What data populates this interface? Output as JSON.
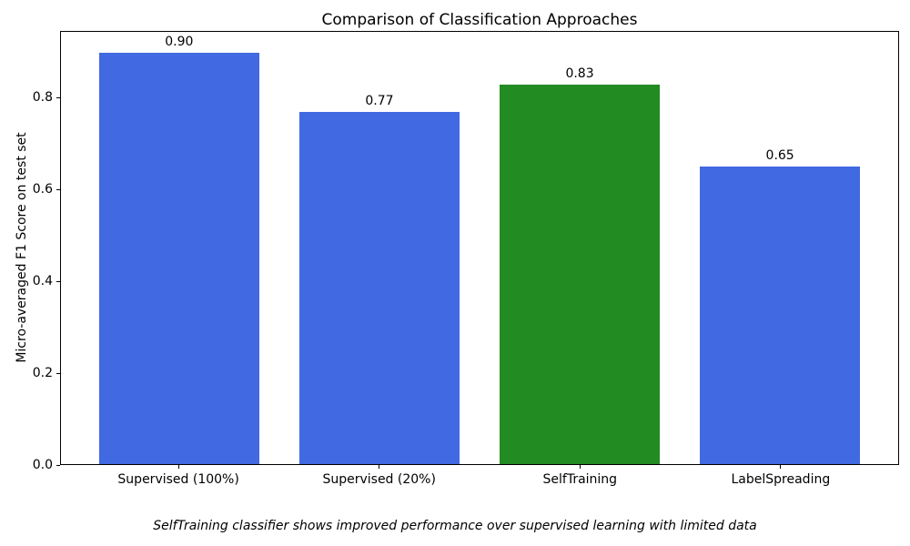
{
  "figure": {
    "title": "Comparison of Classification Approaches",
    "caption": "SelfTraining classifier shows improved performance over supervised learning with limited data"
  },
  "chart_data": {
    "type": "bar",
    "title": "Comparison of Classification Approaches",
    "categories": [
      "Supervised (100%)",
      "Supervised (20%)",
      "SelfTraining",
      "LabelSpreading"
    ],
    "values": [
      0.9,
      0.77,
      0.83,
      0.65
    ],
    "bar_labels": [
      "0.90",
      "0.77",
      "0.83",
      "0.65"
    ],
    "bar_colors": [
      "#4169e1",
      "#4169e1",
      "#228b22",
      "#4169e1"
    ],
    "xlabel": "",
    "ylabel": "Micro-averaged F1 Score on test set",
    "ylim": [
      0,
      0.945
    ],
    "xlim": [
      -0.59,
      3.59
    ],
    "bar_width": 0.8,
    "yticks": [
      0.0,
      0.2,
      0.4,
      0.6,
      0.8
    ],
    "ytick_labels": [
      "0.0",
      "0.2",
      "0.4",
      "0.6",
      "0.8"
    ],
    "grid": false,
    "legend": null,
    "annotation": "SelfTraining classifier shows improved performance over supervised learning with limited data"
  },
  "colors": {
    "bar_blue": "#4169e1",
    "bar_green": "#228b22",
    "spine": "#000000",
    "background": "#ffffff",
    "text": "#000000"
  }
}
